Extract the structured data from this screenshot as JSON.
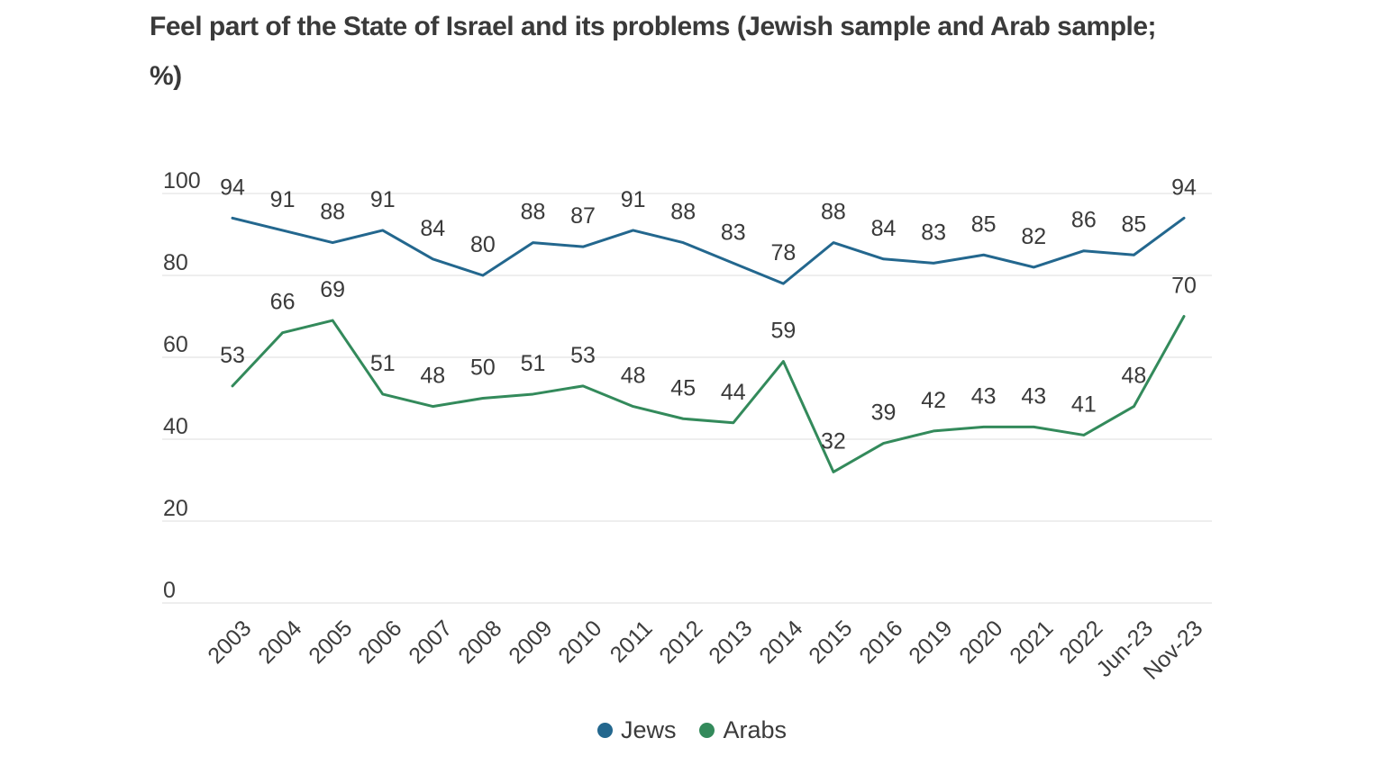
{
  "title": {
    "line1": "Feel part of the State of Israel and its problems (Jewish sample and Arab sample;",
    "line2": "%)",
    "full": "Feel part of the State of Israel and its problems (Jewish sample and Arab sample; %)"
  },
  "legend": {
    "items": [
      {
        "label": "Jews",
        "color": "#23678e"
      },
      {
        "label": "Arabs",
        "color": "#338a5b"
      }
    ]
  },
  "colors": {
    "jews_line": "#23678e",
    "arabs_line": "#338a5b",
    "gridline": "#e9e9e9",
    "axis_text": "#3d3d3d",
    "data_label_text": "#3a3a3a",
    "title_text": "#3a3a3a",
    "background": "#ffffff"
  },
  "chart_data": {
    "type": "line",
    "title": "Feel part of the State of Israel and its problems (Jewish sample and Arab sample; %)",
    "xlabel": "",
    "ylabel": "",
    "ylim": [
      0,
      100
    ],
    "yticks": [
      0,
      20,
      40,
      60,
      80,
      100
    ],
    "grid": "horizontal",
    "point_markers": false,
    "data_labels": true,
    "legend_position": "bottom",
    "categories": [
      "2003",
      "2004",
      "2005",
      "2006",
      "2007",
      "2008",
      "2009",
      "2010",
      "2011",
      "2012",
      "2013",
      "2014",
      "2015",
      "2016",
      "2019",
      "2020",
      "2021",
      "2022",
      "Jun-23",
      "Nov-23"
    ],
    "series": [
      {
        "name": "Jews",
        "color": "#23678e",
        "values": [
          94,
          91,
          88,
          91,
          84,
          80,
          88,
          87,
          91,
          88,
          83,
          78,
          88,
          84,
          83,
          85,
          82,
          86,
          85,
          94
        ]
      },
      {
        "name": "Arabs",
        "color": "#338a5b",
        "values": [
          53,
          66,
          69,
          51,
          48,
          50,
          51,
          53,
          48,
          45,
          44,
          59,
          32,
          39,
          42,
          43,
          43,
          41,
          48,
          70
        ]
      }
    ]
  }
}
